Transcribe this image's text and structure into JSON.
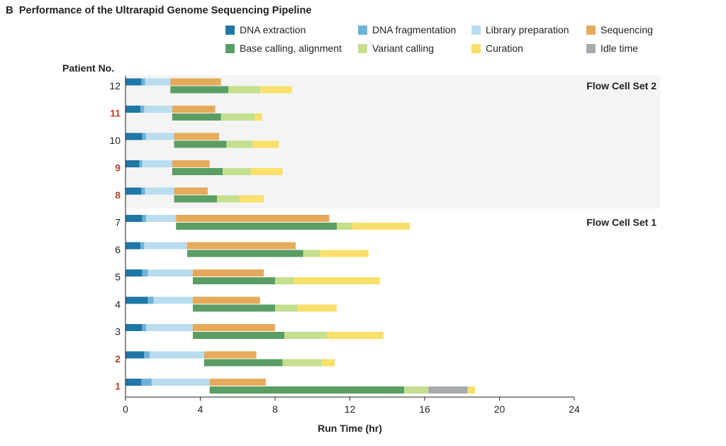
{
  "figure": {
    "panel_letter": "B",
    "title": "Performance of the Ultrarapid Genome Sequencing Pipeline"
  },
  "chart_data": {
    "type": "bar",
    "orientation": "horizontal",
    "stacked": true,
    "title": "Performance of the Ultrarapid Genome Sequencing Pipeline",
    "xlabel": "Run Time (hr)",
    "ylabel": "Patient No.",
    "xlim": [
      0,
      24
    ],
    "xticks": [
      0,
      4,
      8,
      12,
      16,
      20,
      24
    ],
    "legend_position": "top",
    "colors": {
      "DNA extraction": "#1f77a6",
      "DNA fragmentation": "#6db3d8",
      "Library preparation": "#b9dcef",
      "Sequencing": "#e6ab5a",
      "Base calling, alignment": "#5a9e64",
      "Variant calling": "#c4df8e",
      "Curation": "#f9e06a",
      "Idle time": "#a7aaaf"
    },
    "legend": [
      "DNA extraction",
      "DNA fragmentation",
      "Library preparation",
      "Sequencing",
      "Base calling, alignment",
      "Variant calling",
      "Curation",
      "Idle time"
    ],
    "groups": [
      {
        "name": "Flow Cell Set 2",
        "patients": [
          "12",
          "11",
          "10",
          "9",
          "8"
        ],
        "shaded": true
      },
      {
        "name": "Flow Cell Set 1",
        "patients": [
          "7",
          "6",
          "5",
          "4",
          "3",
          "2",
          "1"
        ],
        "shaded": false
      }
    ],
    "highlighted_patients": [
      "11",
      "9",
      "8",
      "2",
      "1"
    ],
    "highlight_color": "#b5452d",
    "patients": [
      {
        "patient": "12",
        "top": [
          {
            "step": "DNA extraction",
            "start": 0,
            "end": 0.85
          },
          {
            "step": "DNA fragmentation",
            "start": 0.85,
            "end": 1.05
          },
          {
            "step": "Library preparation",
            "start": 1.05,
            "end": 2.4
          },
          {
            "step": "Sequencing",
            "start": 2.4,
            "end": 5.1
          }
        ],
        "bottom": [
          {
            "step": "Base calling, alignment",
            "start": 2.4,
            "end": 5.5
          },
          {
            "step": "Variant calling",
            "start": 5.5,
            "end": 7.2
          },
          {
            "step": "Curation",
            "start": 7.2,
            "end": 8.9
          }
        ]
      },
      {
        "patient": "11",
        "top": [
          {
            "step": "DNA extraction",
            "start": 0,
            "end": 0.8
          },
          {
            "step": "DNA fragmentation",
            "start": 0.8,
            "end": 1.0
          },
          {
            "step": "Library preparation",
            "start": 1.0,
            "end": 2.5
          },
          {
            "step": "Sequencing",
            "start": 2.5,
            "end": 4.8
          }
        ],
        "bottom": [
          {
            "step": "Base calling, alignment",
            "start": 2.5,
            "end": 5.1
          },
          {
            "step": "Variant calling",
            "start": 5.1,
            "end": 6.9
          },
          {
            "step": "Curation",
            "start": 6.9,
            "end": 7.3
          }
        ]
      },
      {
        "patient": "10",
        "top": [
          {
            "step": "DNA extraction",
            "start": 0,
            "end": 0.9
          },
          {
            "step": "DNA fragmentation",
            "start": 0.9,
            "end": 1.1
          },
          {
            "step": "Library preparation",
            "start": 1.1,
            "end": 2.6
          },
          {
            "step": "Sequencing",
            "start": 2.6,
            "end": 5.0
          }
        ],
        "bottom": [
          {
            "step": "Base calling, alignment",
            "start": 2.6,
            "end": 5.4
          },
          {
            "step": "Variant calling",
            "start": 5.4,
            "end": 6.8
          },
          {
            "step": "Curation",
            "start": 6.8,
            "end": 8.2
          }
        ]
      },
      {
        "patient": "9",
        "top": [
          {
            "step": "DNA extraction",
            "start": 0,
            "end": 0.75
          },
          {
            "step": "DNA fragmentation",
            "start": 0.75,
            "end": 0.9
          },
          {
            "step": "Library preparation",
            "start": 0.9,
            "end": 2.5
          },
          {
            "step": "Sequencing",
            "start": 2.5,
            "end": 4.5
          }
        ],
        "bottom": [
          {
            "step": "Base calling, alignment",
            "start": 2.5,
            "end": 5.2
          },
          {
            "step": "Variant calling",
            "start": 5.2,
            "end": 6.7
          },
          {
            "step": "Curation",
            "start": 6.7,
            "end": 8.4
          }
        ]
      },
      {
        "patient": "8",
        "top": [
          {
            "step": "DNA extraction",
            "start": 0,
            "end": 0.85
          },
          {
            "step": "DNA fragmentation",
            "start": 0.85,
            "end": 1.05
          },
          {
            "step": "Library preparation",
            "start": 1.05,
            "end": 2.6
          },
          {
            "step": "Sequencing",
            "start": 2.6,
            "end": 4.4
          }
        ],
        "bottom": [
          {
            "step": "Base calling, alignment",
            "start": 2.6,
            "end": 4.9
          },
          {
            "step": "Variant calling",
            "start": 4.9,
            "end": 6.1
          },
          {
            "step": "Curation",
            "start": 6.1,
            "end": 7.4
          }
        ]
      },
      {
        "patient": "7",
        "top": [
          {
            "step": "DNA extraction",
            "start": 0,
            "end": 0.9
          },
          {
            "step": "DNA fragmentation",
            "start": 0.9,
            "end": 1.1
          },
          {
            "step": "Library preparation",
            "start": 1.1,
            "end": 2.7
          },
          {
            "step": "Sequencing",
            "start": 2.7,
            "end": 10.9
          }
        ],
        "bottom": [
          {
            "step": "Base calling, alignment",
            "start": 2.7,
            "end": 11.3
          },
          {
            "step": "Variant calling",
            "start": 11.3,
            "end": 12.1
          },
          {
            "step": "Curation",
            "start": 12.1,
            "end": 15.2
          }
        ]
      },
      {
        "patient": "6",
        "top": [
          {
            "step": "DNA extraction",
            "start": 0,
            "end": 0.8
          },
          {
            "step": "DNA fragmentation",
            "start": 0.8,
            "end": 1.0
          },
          {
            "step": "Library preparation",
            "start": 1.0,
            "end": 3.3
          },
          {
            "step": "Sequencing",
            "start": 3.3,
            "end": 9.1
          }
        ],
        "bottom": [
          {
            "step": "Base calling, alignment",
            "start": 3.3,
            "end": 9.5
          },
          {
            "step": "Variant calling",
            "start": 9.5,
            "end": 10.4
          },
          {
            "step": "Curation",
            "start": 10.4,
            "end": 13.0
          }
        ]
      },
      {
        "patient": "5",
        "top": [
          {
            "step": "DNA extraction",
            "start": 0,
            "end": 0.9
          },
          {
            "step": "DNA fragmentation",
            "start": 0.9,
            "end": 1.2
          },
          {
            "step": "Library preparation",
            "start": 1.2,
            "end": 3.6
          },
          {
            "step": "Sequencing",
            "start": 3.6,
            "end": 7.4
          }
        ],
        "bottom": [
          {
            "step": "Base calling, alignment",
            "start": 3.6,
            "end": 8.0
          },
          {
            "step": "Variant calling",
            "start": 8.0,
            "end": 9.0
          },
          {
            "step": "Curation",
            "start": 9.0,
            "end": 13.6
          }
        ]
      },
      {
        "patient": "4",
        "top": [
          {
            "step": "DNA extraction",
            "start": 0,
            "end": 1.2
          },
          {
            "step": "DNA fragmentation",
            "start": 1.2,
            "end": 1.5
          },
          {
            "step": "Library preparation",
            "start": 1.5,
            "end": 3.6
          },
          {
            "step": "Sequencing",
            "start": 3.6,
            "end": 7.2
          }
        ],
        "bottom": [
          {
            "step": "Base calling, alignment",
            "start": 3.6,
            "end": 8.0
          },
          {
            "step": "Variant calling",
            "start": 8.0,
            "end": 9.2
          },
          {
            "step": "Curation",
            "start": 9.2,
            "end": 11.3
          }
        ]
      },
      {
        "patient": "3",
        "top": [
          {
            "step": "DNA extraction",
            "start": 0,
            "end": 0.9
          },
          {
            "step": "DNA fragmentation",
            "start": 0.9,
            "end": 1.1
          },
          {
            "step": "Library preparation",
            "start": 1.1,
            "end": 3.6
          },
          {
            "step": "Sequencing",
            "start": 3.6,
            "end": 8.0
          }
        ],
        "bottom": [
          {
            "step": "Base calling, alignment",
            "start": 3.6,
            "end": 8.5
          },
          {
            "step": "Variant calling",
            "start": 8.5,
            "end": 10.8
          },
          {
            "step": "Curation",
            "start": 10.8,
            "end": 13.8
          }
        ]
      },
      {
        "patient": "2",
        "top": [
          {
            "step": "DNA extraction",
            "start": 0,
            "end": 1.0
          },
          {
            "step": "DNA fragmentation",
            "start": 1.0,
            "end": 1.3
          },
          {
            "step": "Library preparation",
            "start": 1.3,
            "end": 4.2
          },
          {
            "step": "Sequencing",
            "start": 4.2,
            "end": 7.0
          }
        ],
        "bottom": [
          {
            "step": "Base calling, alignment",
            "start": 4.2,
            "end": 8.4
          },
          {
            "step": "Variant calling",
            "start": 8.4,
            "end": 10.5
          },
          {
            "step": "Curation",
            "start": 10.5,
            "end": 11.2
          }
        ]
      },
      {
        "patient": "1",
        "top": [
          {
            "step": "DNA extraction",
            "start": 0,
            "end": 0.85
          },
          {
            "step": "DNA fragmentation",
            "start": 0.85,
            "end": 1.4
          },
          {
            "step": "Library preparation",
            "start": 1.4,
            "end": 4.5
          },
          {
            "step": "Sequencing",
            "start": 4.5,
            "end": 7.5
          }
        ],
        "bottom": [
          {
            "step": "Base calling, alignment",
            "start": 4.5,
            "end": 14.9
          },
          {
            "step": "Variant calling",
            "start": 14.9,
            "end": 16.2
          },
          {
            "step": "Idle time",
            "start": 16.2,
            "end": 18.3
          },
          {
            "step": "Curation",
            "start": 18.3,
            "end": 18.7
          }
        ]
      }
    ]
  }
}
